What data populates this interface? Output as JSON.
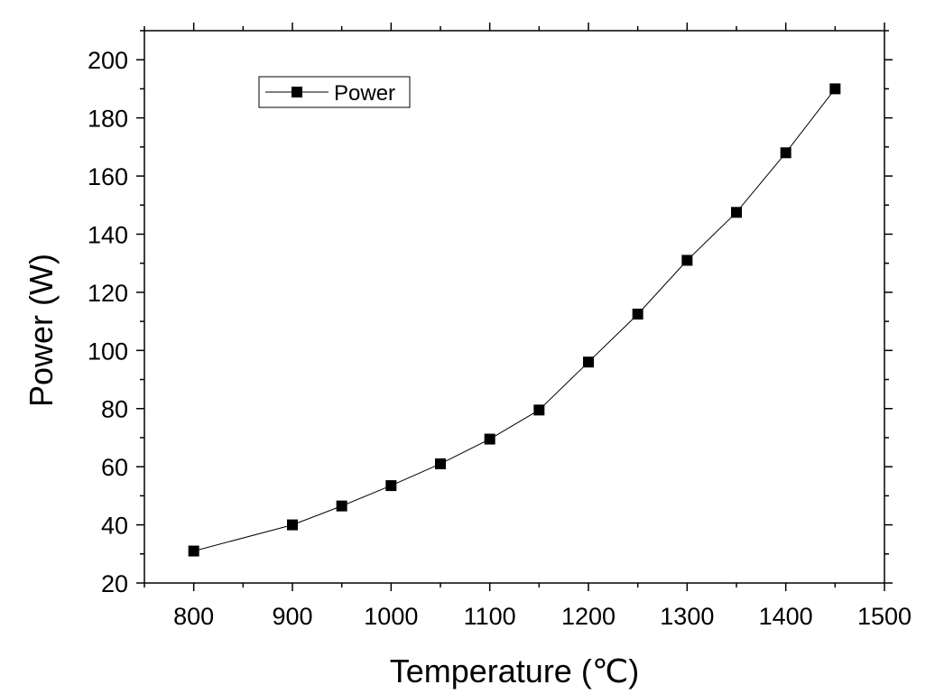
{
  "chart_data": {
    "type": "line",
    "xlabel": "Temperature (℃)",
    "ylabel": "Power (W)",
    "xlim": [
      750,
      1500
    ],
    "ylim": [
      20,
      210
    ],
    "x_ticks": [
      "800",
      "900",
      "1000",
      "1100",
      "1200",
      "1300",
      "1400",
      "1500"
    ],
    "y_ticks": [
      "20",
      "40",
      "60",
      "80",
      "100",
      "120",
      "140",
      "160",
      "180",
      "200"
    ],
    "legend_position": "top-left",
    "grid": false,
    "series": [
      {
        "name": "Power",
        "color": "#000000",
        "marker": "square",
        "x": [
          800,
          900,
          950,
          1000,
          1050,
          1100,
          1150,
          1200,
          1250,
          1300,
          1350,
          1400,
          1450
        ],
        "y": [
          31,
          40,
          46.5,
          53.5,
          61,
          69.5,
          79.5,
          96,
          112.5,
          131,
          147.5,
          168,
          190
        ]
      }
    ]
  }
}
